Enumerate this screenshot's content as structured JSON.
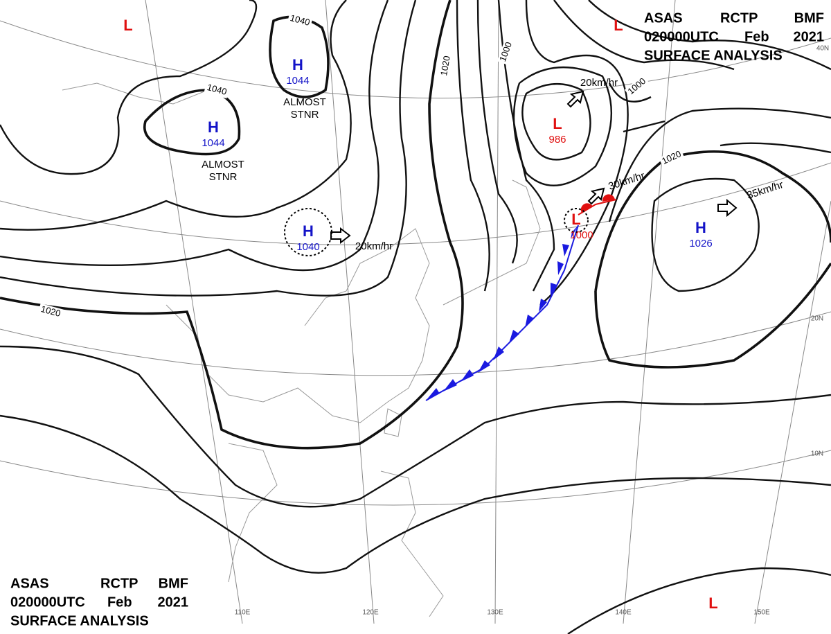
{
  "header": {
    "lines": [
      [
        "ASAS",
        "RCTP",
        "BMF"
      ],
      [
        "020000UTC",
        "Feb",
        "2021"
      ],
      [
        "SURFACE ANALYSIS"
      ]
    ]
  },
  "systems": [
    {
      "symbol": "H",
      "pressure": "1044",
      "color": "#1414c8"
    },
    {
      "symbol": "H",
      "pressure": "1044",
      "color": "#1414c8"
    },
    {
      "symbol": "H",
      "pressure": "1040",
      "color": "#1414c8"
    },
    {
      "symbol": "L",
      "pressure": "986",
      "color": "#e01010"
    },
    {
      "symbol": "L",
      "pressure": "1000",
      "color": "#e01010"
    },
    {
      "symbol": "H",
      "pressure": "1026",
      "color": "#1414c8"
    },
    {
      "symbol": "L",
      "color": "#e01010"
    },
    {
      "symbol": "L",
      "color": "#e01010"
    },
    {
      "symbol": "L",
      "color": "#e01010"
    }
  ],
  "annotations": [
    "ALMOST STNR",
    "ALMOST STNR",
    "20km/hr",
    "20km/hr",
    "30km/hr",
    "35km/hr"
  ],
  "isobar_labels": [
    "1040",
    "1040",
    "1020",
    "1000",
    "1000",
    "1020",
    "1020"
  ],
  "latitude_labels": [
    "40N",
    "20N",
    "10N"
  ],
  "longitude_labels": [
    "110E",
    "120E",
    "130E",
    "140E",
    "150E"
  ]
}
